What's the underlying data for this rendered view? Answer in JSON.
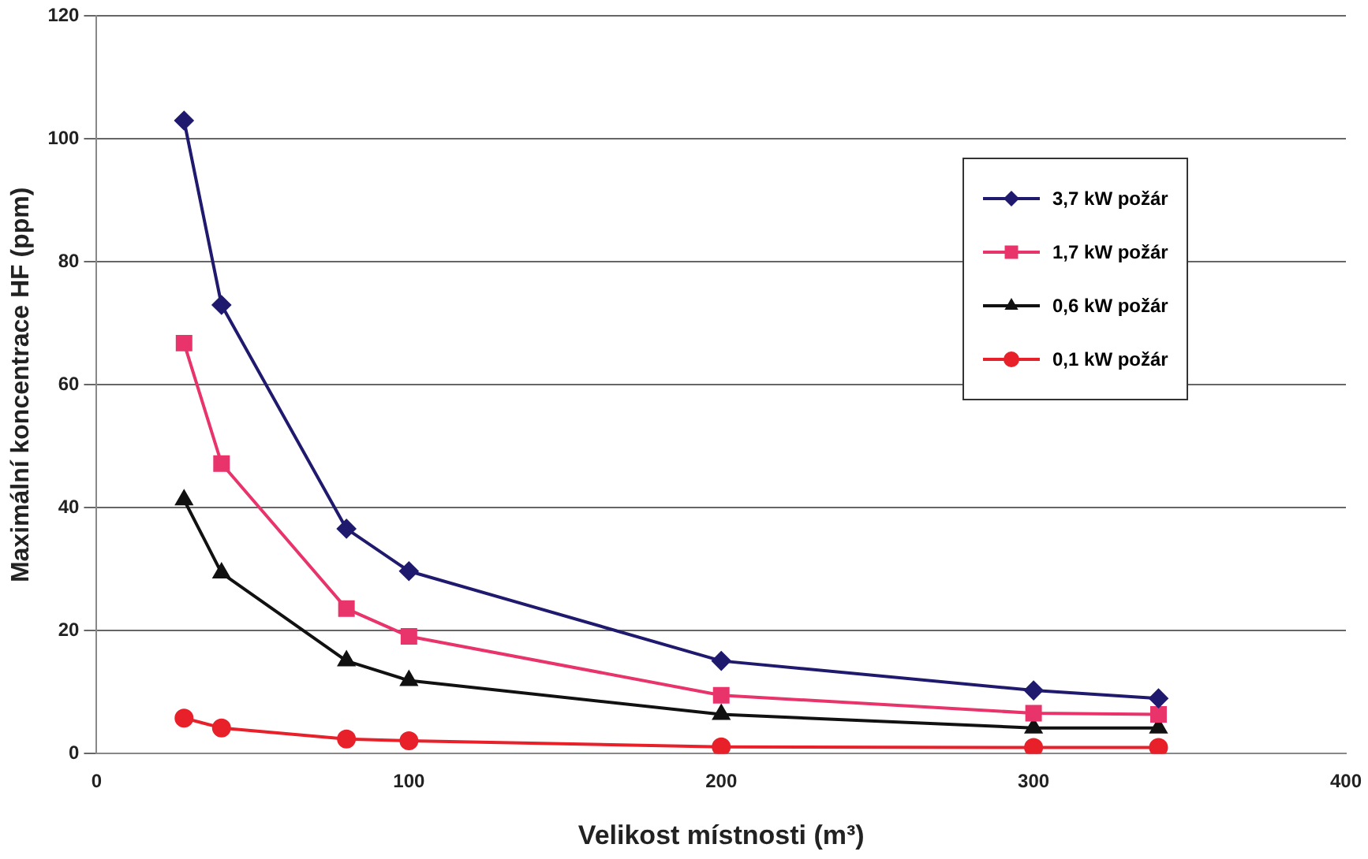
{
  "chart_data": {
    "type": "line",
    "xlabel": "Velikost místnosti (m³)",
    "ylabel": "Maximální koncentrace HF (ppm)",
    "x": [
      28,
      40,
      80,
      100,
      200,
      300,
      340
    ],
    "series": [
      {
        "name": "3,7 kW požár",
        "color": "#1f1a6e",
        "marker": "diamond",
        "values": [
          103,
          73,
          36.6,
          29.7,
          15.1,
          10.3,
          9
        ]
      },
      {
        "name": "1,7 kW požár",
        "color": "#e8336b",
        "marker": "square",
        "values": [
          66.8,
          47.2,
          23.6,
          19.1,
          9.5,
          6.6,
          6.4
        ]
      },
      {
        "name": "0,6 kW požár",
        "color": "#111111",
        "marker": "triangle",
        "values": [
          41.3,
          29.4,
          15.1,
          11.9,
          6.4,
          4.2,
          4.2
        ]
      },
      {
        "name": "0,1 kW požár",
        "color": "#e8202a",
        "marker": "circle",
        "values": [
          5.8,
          4.2,
          2.4,
          2.1,
          1.1,
          1,
          1
        ]
      }
    ],
    "xlim": [
      0,
      400
    ],
    "xticks": [
      0,
      100,
      200,
      300,
      400
    ],
    "ylim": [
      0,
      120
    ],
    "yticks": [
      0,
      20,
      40,
      60,
      80,
      100,
      120
    ],
    "grid": "y",
    "legend": "top right",
    "line_style": "solid"
  }
}
